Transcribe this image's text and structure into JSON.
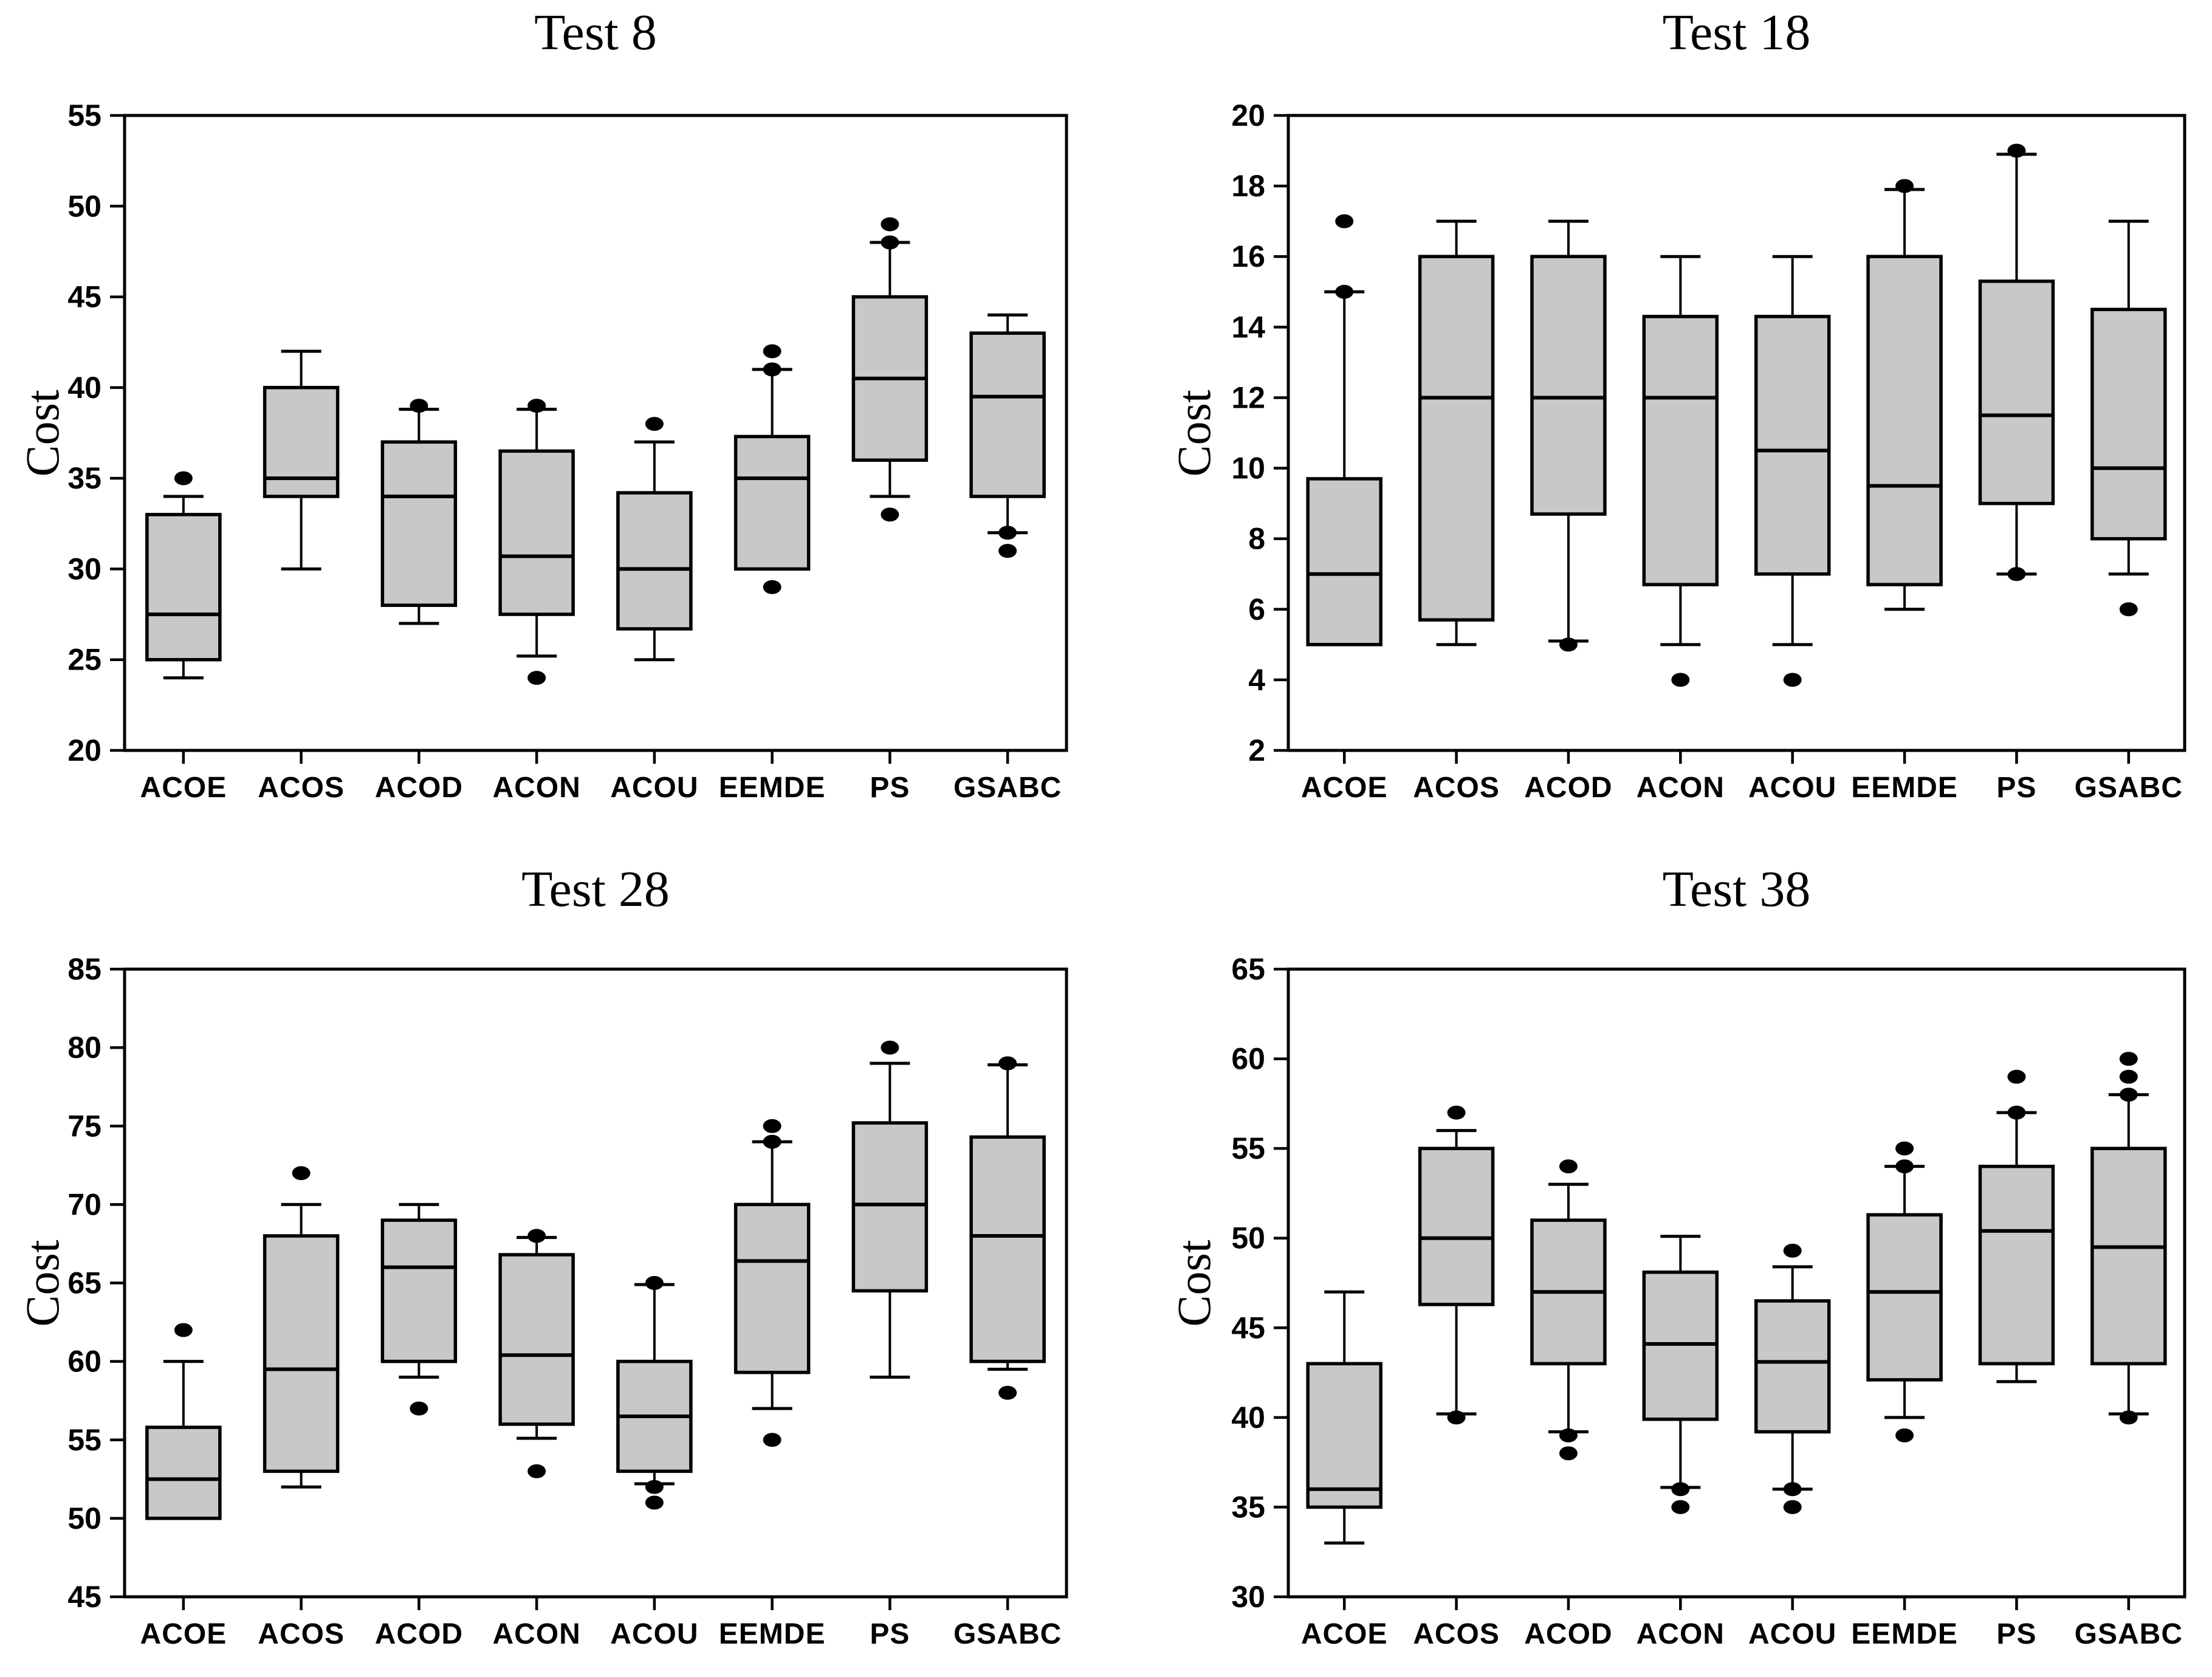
{
  "figure": {
    "background": "#ffffff",
    "colors": {
      "box_fill": "#c8c8c8",
      "line": "#000000",
      "text": "#000000"
    }
  },
  "chart_data": [
    {
      "type": "boxplot",
      "title": "Test 8",
      "ylabel": "Cost",
      "ylim": [
        20,
        55
      ],
      "yticks": [
        20,
        25,
        30,
        35,
        40,
        45,
        50,
        55
      ],
      "grid": false,
      "categories": [
        "ACOE",
        "ACOS",
        "ACOD",
        "ACON",
        "ACOU",
        "EEMDE",
        "PS",
        "GSABC"
      ],
      "boxes": [
        {
          "category": "ACOE",
          "whisker_low": 24,
          "q1": 25,
          "median": 27.5,
          "q3": 33,
          "whisker_high": 34,
          "outliers": [
            35
          ]
        },
        {
          "category": "ACOS",
          "whisker_low": 30,
          "q1": 34,
          "median": 35,
          "q3": 40,
          "whisker_high": 42,
          "outliers": []
        },
        {
          "category": "ACOD",
          "whisker_low": 27,
          "q1": 28,
          "median": 34,
          "q3": 37,
          "whisker_high": 38.8,
          "outliers": [
            39
          ]
        },
        {
          "category": "ACON",
          "whisker_low": 25.2,
          "q1": 27.5,
          "median": 30.7,
          "q3": 36.5,
          "whisker_high": 38.8,
          "outliers": [
            39,
            24
          ]
        },
        {
          "category": "ACOU",
          "whisker_low": 25,
          "q1": 26.7,
          "median": 30,
          "q3": 34.2,
          "whisker_high": 37,
          "outliers": [
            38
          ]
        },
        {
          "category": "EEMDE",
          "whisker_low": 30,
          "q1": 30,
          "median": 35,
          "q3": 37.3,
          "whisker_high": 41,
          "outliers": [
            42,
            41,
            29
          ]
        },
        {
          "category": "PS",
          "whisker_low": 34,
          "q1": 36,
          "median": 40.5,
          "q3": 45,
          "whisker_high": 48,
          "outliers": [
            49,
            48,
            33
          ]
        },
        {
          "category": "GSABC",
          "whisker_low": 32,
          "q1": 34,
          "median": 39.5,
          "q3": 43,
          "whisker_high": 44,
          "outliers": [
            32,
            31
          ]
        }
      ]
    },
    {
      "type": "boxplot",
      "title": "Test 18",
      "ylabel": "Cost",
      "ylim": [
        2,
        20
      ],
      "yticks": [
        2,
        4,
        6,
        8,
        10,
        12,
        14,
        16,
        18,
        20
      ],
      "grid": false,
      "categories": [
        "ACOE",
        "ACOS",
        "ACOD",
        "ACON",
        "ACOU",
        "EEMDE",
        "PS",
        "GSABC"
      ],
      "boxes": [
        {
          "category": "ACOE",
          "whisker_low": 5,
          "q1": 5,
          "median": 7,
          "q3": 9.7,
          "whisker_high": 15,
          "outliers": [
            17,
            15
          ]
        },
        {
          "category": "ACOS",
          "whisker_low": 5,
          "q1": 5.7,
          "median": 12,
          "q3": 16,
          "whisker_high": 17,
          "outliers": []
        },
        {
          "category": "ACOD",
          "whisker_low": 5.1,
          "q1": 8.7,
          "median": 12,
          "q3": 16,
          "whisker_high": 17,
          "outliers": [
            5
          ]
        },
        {
          "category": "ACON",
          "whisker_low": 5,
          "q1": 6.7,
          "median": 12,
          "q3": 14.3,
          "whisker_high": 16,
          "outliers": [
            4
          ]
        },
        {
          "category": "ACOU",
          "whisker_low": 5,
          "q1": 7,
          "median": 10.5,
          "q3": 14.3,
          "whisker_high": 16,
          "outliers": [
            4
          ]
        },
        {
          "category": "EEMDE",
          "whisker_low": 6,
          "q1": 6.7,
          "median": 9.5,
          "q3": 16,
          "whisker_high": 17.9,
          "outliers": [
            18
          ]
        },
        {
          "category": "PS",
          "whisker_low": 7,
          "q1": 9,
          "median": 11.5,
          "q3": 15.3,
          "whisker_high": 18.9,
          "outliers": [
            19,
            7
          ]
        },
        {
          "category": "GSABC",
          "whisker_low": 7,
          "q1": 8,
          "median": 10,
          "q3": 14.5,
          "whisker_high": 17,
          "outliers": [
            6
          ]
        }
      ]
    },
    {
      "type": "boxplot",
      "title": "Test 28",
      "ylabel": "Cost",
      "ylim": [
        45,
        85
      ],
      "yticks": [
        45,
        50,
        55,
        60,
        65,
        70,
        75,
        80,
        85
      ],
      "grid": false,
      "categories": [
        "ACOE",
        "ACOS",
        "ACOD",
        "ACON",
        "ACOU",
        "EEMDE",
        "PS",
        "GSABC"
      ],
      "boxes": [
        {
          "category": "ACOE",
          "whisker_low": 50,
          "q1": 50,
          "median": 52.5,
          "q3": 55.8,
          "whisker_high": 60,
          "outliers": [
            62
          ]
        },
        {
          "category": "ACOS",
          "whisker_low": 52,
          "q1": 53,
          "median": 59.5,
          "q3": 68,
          "whisker_high": 70,
          "outliers": [
            72
          ]
        },
        {
          "category": "ACOD",
          "whisker_low": 59,
          "q1": 60,
          "median": 66,
          "q3": 69,
          "whisker_high": 70,
          "outliers": [
            57
          ]
        },
        {
          "category": "ACON",
          "whisker_low": 55.1,
          "q1": 56,
          "median": 60.4,
          "q3": 66.8,
          "whisker_high": 67.9,
          "outliers": [
            68,
            53
          ]
        },
        {
          "category": "ACOU",
          "whisker_low": 52.2,
          "q1": 53,
          "median": 56.5,
          "q3": 60,
          "whisker_high": 64.9,
          "outliers": [
            65,
            52,
            51
          ]
        },
        {
          "category": "EEMDE",
          "whisker_low": 57,
          "q1": 59.3,
          "median": 66.4,
          "q3": 70,
          "whisker_high": 74,
          "outliers": [
            75,
            74,
            55
          ]
        },
        {
          "category": "PS",
          "whisker_low": 59,
          "q1": 64.5,
          "median": 70,
          "q3": 75.2,
          "whisker_high": 79,
          "outliers": [
            80
          ]
        },
        {
          "category": "GSABC",
          "whisker_low": 59.5,
          "q1": 60,
          "median": 68,
          "q3": 74.3,
          "whisker_high": 78.9,
          "outliers": [
            79,
            58
          ]
        }
      ]
    },
    {
      "type": "boxplot",
      "title": "Test 38",
      "ylabel": "Cost",
      "ylim": [
        30,
        65
      ],
      "yticks": [
        30,
        35,
        40,
        45,
        50,
        55,
        60,
        65
      ],
      "grid": false,
      "categories": [
        "ACOE",
        "ACOS",
        "ACOD",
        "ACON",
        "ACOU",
        "EEMDE",
        "PS",
        "GSABC"
      ],
      "boxes": [
        {
          "category": "ACOE",
          "whisker_low": 33,
          "q1": 35,
          "median": 36,
          "q3": 43,
          "whisker_high": 47,
          "outliers": []
        },
        {
          "category": "ACOS",
          "whisker_low": 40.2,
          "q1": 46.3,
          "median": 50,
          "q3": 55,
          "whisker_high": 56,
          "outliers": [
            57,
            40
          ]
        },
        {
          "category": "ACOD",
          "whisker_low": 39.2,
          "q1": 43,
          "median": 47,
          "q3": 51,
          "whisker_high": 53,
          "outliers": [
            54,
            39,
            38
          ]
        },
        {
          "category": "ACON",
          "whisker_low": 36.1,
          "q1": 39.9,
          "median": 44.1,
          "q3": 48.1,
          "whisker_high": 50.1,
          "outliers": [
            36,
            35
          ]
        },
        {
          "category": "ACOU",
          "whisker_low": 36,
          "q1": 39.2,
          "median": 43.1,
          "q3": 46.5,
          "whisker_high": 48.4,
          "outliers": [
            49.3,
            36,
            35
          ]
        },
        {
          "category": "EEMDE",
          "whisker_low": 40,
          "q1": 42.1,
          "median": 47,
          "q3": 51.3,
          "whisker_high": 54,
          "outliers": [
            55,
            54,
            39
          ]
        },
        {
          "category": "PS",
          "whisker_low": 42,
          "q1": 43,
          "median": 50.4,
          "q3": 54,
          "whisker_high": 57,
          "outliers": [
            59,
            57
          ]
        },
        {
          "category": "GSABC",
          "whisker_low": 40.2,
          "q1": 43,
          "median": 49.5,
          "q3": 55,
          "whisker_high": 58,
          "outliers": [
            60,
            59,
            58,
            40
          ]
        }
      ]
    }
  ]
}
